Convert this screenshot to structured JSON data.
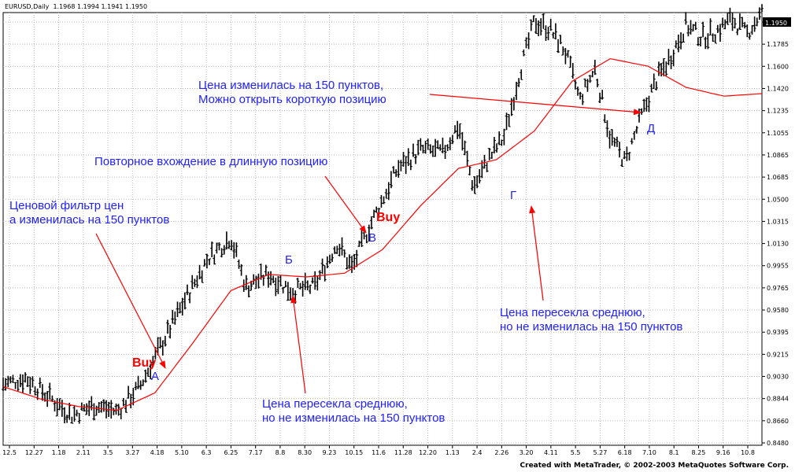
{
  "header": {
    "symbol": "EURUSD,Daily",
    "ohlc": "1.1968 1.1994 1.1941 1.1950"
  },
  "footer": {
    "credit": "Created with MetaTrader, © 2002-2003 MetaQuotes Software Corp."
  },
  "annotations": {
    "a1_line1": "Ценовой фильтр цен",
    "a1_line2": "а изменилась на 150 пунктов",
    "a2": "Повторное вхождение в длинную позицию",
    "a3_line1": "Цена изменилась на 150 пунктов,",
    "a3_line2": "Можно открыть короткую позицию",
    "a4_line1": "Цена пересекла среднюю,",
    "a4_line2": "но не изменилась на 150 пунктов",
    "a5_line1": "Цена пересекла среднюю,",
    "a5_line2": "но не изменилась на 150 пунктов",
    "buy1": "Buy",
    "buy2": "Buy",
    "point_a": "А",
    "point_b": "Б",
    "point_v": "В",
    "point_g": "Г",
    "point_d": "Д"
  },
  "colors": {
    "candles": "#000000",
    "moving_average": "#ff0000",
    "annotation_text": "#2222ff",
    "arrows": "#ff0000",
    "buy": "#ff0000"
  },
  "chart_data": {
    "type": "line",
    "y_scale_labels": [
      "1.1950",
      "1.1785",
      "1.1600",
      "1.1420",
      "1.1235",
      "1.1055",
      "1.0865",
      "1.0685",
      "1.0500",
      "1.0315",
      "1.0130",
      "0.9955",
      "0.9765",
      "0.9580",
      "0.9395",
      "0.9215",
      "0.9030",
      "0.8844",
      "0.8660",
      "0.8480"
    ],
    "current_price": "1.1950",
    "x_labels": [
      "12.5",
      "12.27",
      "1.18",
      "2.11",
      "3.5",
      "3.27",
      "4.18",
      "5.10",
      "6.3",
      "6.25",
      "7.17",
      "8.8",
      "8.30",
      "9.23",
      "10.15",
      "11.6",
      "11.28",
      "12.20",
      "1.13",
      "2.4",
      "2.26",
      "3.20",
      "4.11",
      "5.5",
      "5.27",
      "6.18",
      "7.10",
      "8.1",
      "8.25",
      "9.16",
      "10.8"
    ],
    "ylim": [
      0.848,
      1.195
    ],
    "series": [
      {
        "price_x": [
          0,
          0.03,
          0.06,
          0.09,
          0.12,
          0.15,
          0.18,
          0.21,
          0.24,
          0.27,
          0.3,
          0.32,
          0.35,
          0.38,
          0.41,
          0.44,
          0.46,
          0.48,
          0.5,
          0.52,
          0.55,
          0.58,
          0.6,
          0.62,
          0.64,
          0.66,
          0.68,
          0.7,
          0.72,
          0.74,
          0.76,
          0.78,
          0.8,
          0.82,
          0.84,
          0.86,
          0.88,
          0.9,
          0.92,
          0.94,
          0.96,
          0.98,
          1
        ],
        "price_y": [
          0.897,
          0.902,
          0.887,
          0.872,
          0.88,
          0.875,
          0.895,
          0.93,
          0.965,
          0.998,
          1.015,
          0.975,
          0.985,
          0.972,
          0.975,
          1.01,
          0.99,
          1.02,
          1.045,
          1.07,
          1.085,
          1.083,
          1.105,
          1.055,
          1.078,
          1.095,
          1.145,
          1.188,
          1.182,
          1.165,
          1.125,
          1.15,
          1.095,
          1.075,
          1.11,
          1.14,
          1.16,
          1.185,
          1.175,
          1.18,
          1.19,
          1.178,
          1.195
        ],
        "ma_x": [
          0,
          0.05,
          0.1,
          0.15,
          0.2,
          0.25,
          0.3,
          0.35,
          0.4,
          0.45,
          0.5,
          0.55,
          0.6,
          0.65,
          0.7,
          0.75,
          0.8,
          0.85,
          0.9,
          0.95,
          1
        ],
        "ma_y": [
          0.895,
          0.885,
          0.879,
          0.876,
          0.89,
          0.93,
          0.972,
          0.985,
          0.983,
          0.986,
          1.005,
          1.04,
          1.07,
          1.077,
          1.1,
          1.14,
          1.158,
          1.152,
          1.135,
          1.128,
          1.13
        ]
      }
    ]
  }
}
